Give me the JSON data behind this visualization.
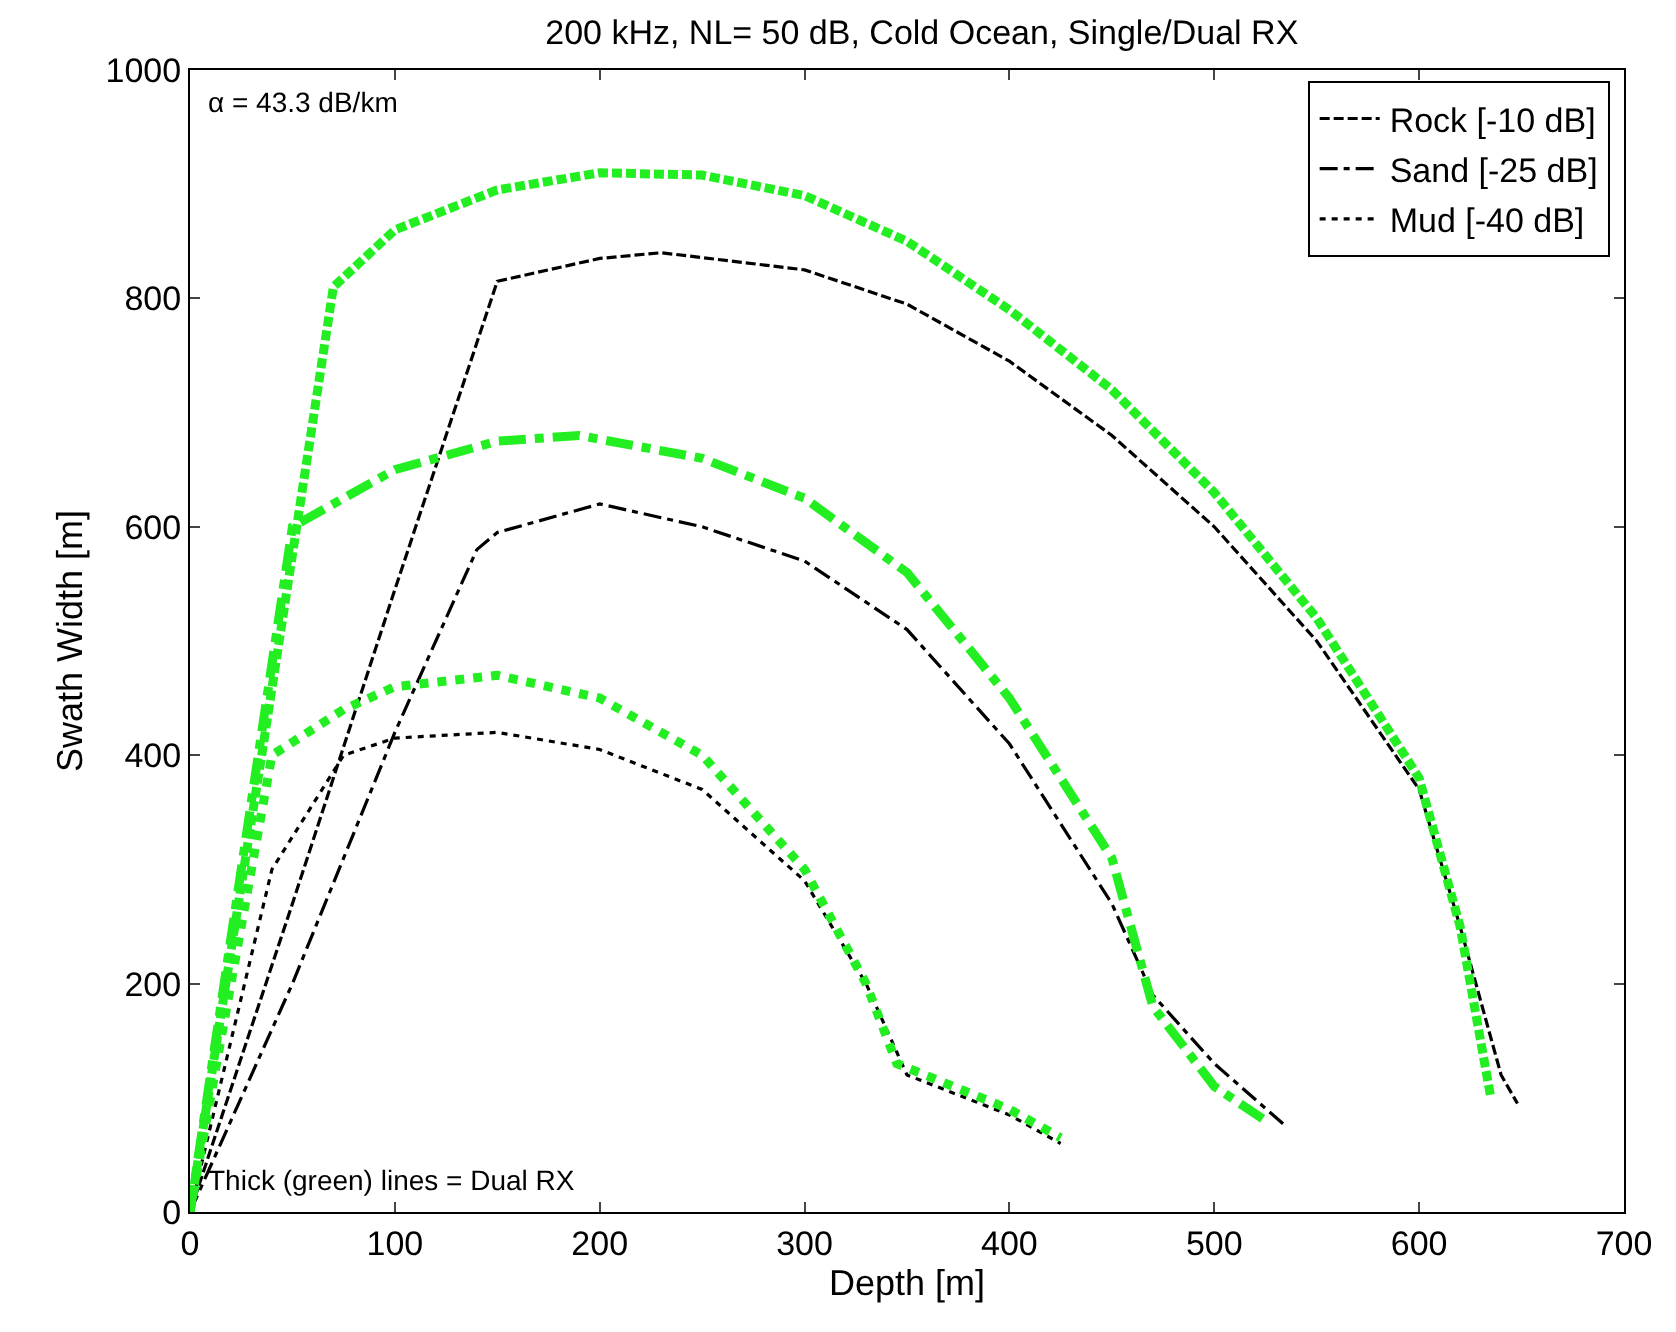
{
  "chart_data": {
    "type": "line",
    "title": "200 kHz, NL= 50 dB, Cold Ocean, Single/Dual RX",
    "xlabel": "Depth [m]",
    "ylabel": "Swath Width [m]",
    "xlim": [
      0,
      700
    ],
    "xticks": [
      0,
      100,
      200,
      300,
      400,
      500,
      600,
      700
    ],
    "ylim": [
      0,
      1000
    ],
    "yticks": [
      0,
      200,
      400,
      600,
      800,
      1000
    ],
    "legend": "top right",
    "marker": "none",
    "annotations": [
      "α = 43.3 dB/km",
      "Thick (green) lines = Dual RX"
    ],
    "series": [
      {
        "name": "Rock [-10 dB]",
        "color": "#000000",
        "line_style": "dashed",
        "x": [
          0,
          50,
          100,
          150,
          200,
          230,
          300,
          350,
          400,
          450,
          500,
          550,
          600,
          620,
          640,
          648
        ],
        "values": [
          0,
          270,
          545,
          815,
          835,
          840,
          825,
          795,
          745,
          680,
          600,
          500,
          370,
          250,
          120,
          95
        ]
      },
      {
        "name": "Sand [-25 dB]",
        "color": "#000000",
        "line_style": "dashdot",
        "x": [
          0,
          50,
          100,
          140,
          150,
          200,
          250,
          300,
          350,
          400,
          450,
          470,
          500,
          535
        ],
        "values": [
          0,
          200,
          420,
          580,
          595,
          620,
          600,
          570,
          510,
          410,
          270,
          190,
          130,
          75
        ]
      },
      {
        "name": "Mud [-40 dB]",
        "color": "#000000",
        "line_style": "dotted",
        "x": [
          0,
          40,
          75,
          100,
          150,
          200,
          250,
          300,
          330,
          350,
          400,
          425
        ],
        "values": [
          0,
          300,
          400,
          415,
          420,
          405,
          370,
          290,
          200,
          120,
          85,
          60
        ]
      },
      {
        "color": "#22ee22",
        "line_style": "dashed",
        "x": [
          0,
          35,
          70,
          100,
          150,
          200,
          250,
          300,
          350,
          400,
          450,
          500,
          550,
          600,
          620,
          635
        ],
        "values": [
          0,
          400,
          810,
          860,
          895,
          910,
          908,
          890,
          850,
          790,
          720,
          630,
          520,
          380,
          250,
          100
        ]
      },
      {
        "color": "#22ee22",
        "line_style": "dashdot",
        "x": [
          0,
          35,
          50,
          100,
          150,
          190,
          250,
          300,
          350,
          400,
          450,
          470,
          500,
          525
        ],
        "values": [
          0,
          420,
          600,
          650,
          675,
          680,
          660,
          625,
          560,
          450,
          310,
          180,
          110,
          80
        ]
      },
      {
        "color": "#22ee22",
        "line_style": "dotted",
        "x": [
          0,
          40,
          75,
          100,
          150,
          200,
          250,
          300,
          330,
          345,
          400,
          425
        ],
        "values": [
          0,
          400,
          440,
          460,
          470,
          450,
          400,
          300,
          200,
          130,
          90,
          65
        ]
      }
    ]
  }
}
